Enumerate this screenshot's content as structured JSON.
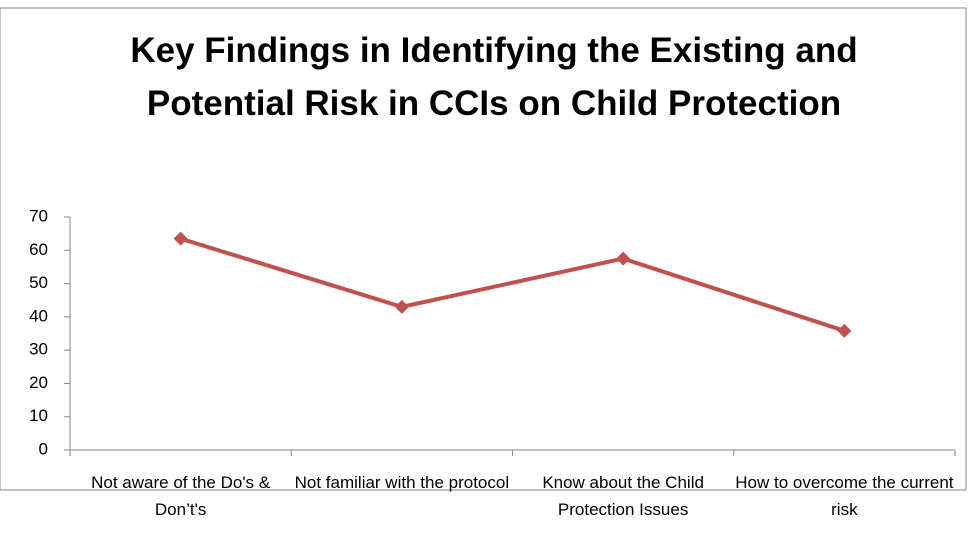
{
  "chart_data": {
    "type": "line",
    "title": "Key Findings in Identifying the Existing and Potential Risk in CCIs on Child Protection",
    "categories": [
      "Not aware of the Do's & Don’t's",
      "Not familiar with the protocol",
      "Know about the Child Protection Issues",
      "How to overcome the current risk"
    ],
    "series": [
      {
        "name": "Series1",
        "color": "#c0504d",
        "values": [
          63.5,
          43,
          57.5,
          35.8
        ]
      }
    ],
    "ylim": [
      0,
      70
    ],
    "yticks": [
      0,
      10,
      20,
      30,
      40,
      50,
      60,
      70
    ],
    "grid": false,
    "legend": false
  }
}
